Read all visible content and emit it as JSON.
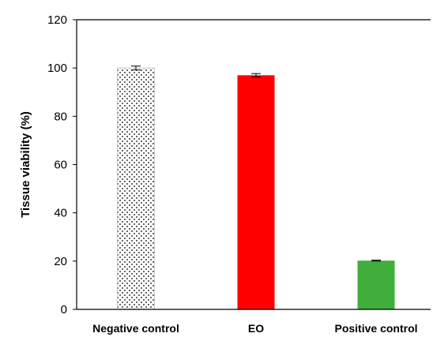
{
  "chart_data": {
    "type": "bar",
    "title": "",
    "xlabel": "",
    "ylabel": "Tissue viability (%)",
    "ylim": [
      0,
      120
    ],
    "yticks": [
      0,
      20,
      40,
      60,
      80,
      100,
      120
    ],
    "grid": false,
    "categories": [
      "Negative control",
      "EO",
      "Positive control"
    ],
    "values": [
      100,
      97,
      20.2
    ],
    "errors": [
      0.8,
      0.7,
      0.2
    ],
    "bar_styles": [
      {
        "fill": "#ffffff",
        "pattern": "dots",
        "pattern_color": "#000000"
      },
      {
        "fill": "#ff0000",
        "pattern": "none",
        "pattern_color": ""
      },
      {
        "fill": "#3fae3a",
        "pattern": "none",
        "pattern_color": ""
      }
    ]
  }
}
